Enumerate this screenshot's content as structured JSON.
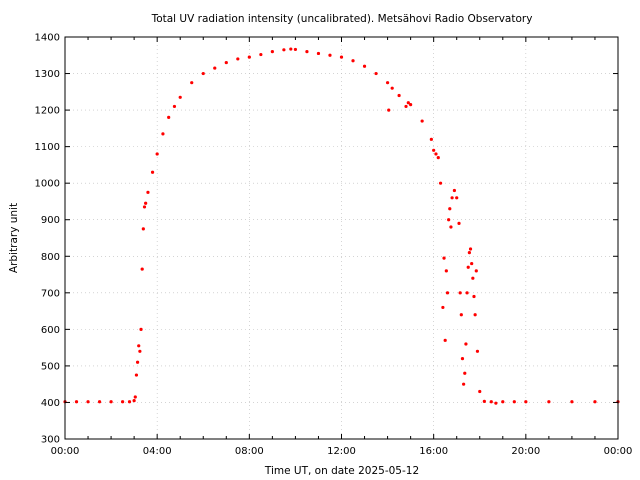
{
  "chart_data": {
    "type": "scatter",
    "title": "Total UV radiation intensity (uncalibrated). Metsähovi Radio Observatory",
    "xlabel": "Time UT, on date 2025-05-12",
    "ylabel": "Arbitrary unit",
    "xlim": [
      "00:00",
      "24:00"
    ],
    "ylim": [
      300,
      1400
    ],
    "xticks": [
      "00:00",
      "04:00",
      "08:00",
      "12:00",
      "16:00",
      "20:00",
      "00:00"
    ],
    "yticks": [
      300,
      400,
      500,
      600,
      700,
      800,
      900,
      1000,
      1100,
      1200,
      1300,
      1400
    ],
    "grid": true,
    "series": [
      {
        "color": "#ff0000",
        "x_unit": "hours UT",
        "x": [
          0.0,
          0.5,
          1.0,
          1.5,
          2.0,
          2.5,
          2.8,
          3.0,
          3.05,
          3.1,
          3.15,
          3.2,
          3.25,
          3.3,
          3.35,
          3.4,
          3.45,
          3.5,
          3.6,
          3.8,
          4.0,
          4.25,
          4.5,
          4.75,
          5.0,
          5.5,
          6.0,
          6.5,
          7.0,
          7.5,
          8.0,
          8.5,
          9.0,
          9.5,
          9.8,
          10.0,
          10.5,
          11.0,
          11.5,
          12.0,
          12.5,
          13.0,
          13.5,
          14.0,
          14.05,
          14.2,
          14.5,
          14.8,
          14.9,
          15.0,
          15.5,
          15.9,
          16.0,
          16.1,
          16.2,
          16.3,
          16.4,
          16.45,
          16.5,
          16.55,
          16.6,
          16.65,
          16.7,
          16.75,
          16.8,
          16.9,
          17.0,
          17.1,
          17.15,
          17.2,
          17.25,
          17.3,
          17.35,
          17.4,
          17.45,
          17.5,
          17.55,
          17.6,
          17.65,
          17.7,
          17.75,
          17.8,
          17.85,
          17.9,
          18.0,
          18.2,
          18.5,
          18.7,
          19.0,
          19.5,
          20.0,
          21.0,
          22.0,
          23.0,
          24.0
        ],
        "y": [
          402,
          402,
          402,
          402,
          402,
          402,
          402,
          405,
          415,
          475,
          510,
          555,
          540,
          600,
          765,
          875,
          935,
          945,
          975,
          1030,
          1080,
          1135,
          1180,
          1210,
          1235,
          1275,
          1300,
          1315,
          1330,
          1340,
          1345,
          1352,
          1360,
          1365,
          1367,
          1366,
          1360,
          1355,
          1350,
          1345,
          1335,
          1320,
          1300,
          1275,
          1200,
          1260,
          1240,
          1210,
          1220,
          1215,
          1170,
          1120,
          1090,
          1080,
          1070,
          1000,
          660,
          795,
          570,
          760,
          700,
          900,
          930,
          880,
          960,
          980,
          960,
          890,
          700,
          640,
          520,
          450,
          480,
          560,
          700,
          770,
          810,
          820,
          780,
          740,
          690,
          640,
          760,
          540,
          430,
          403,
          402,
          398,
          402,
          402,
          402,
          402,
          402,
          402,
          402
        ]
      }
    ]
  }
}
